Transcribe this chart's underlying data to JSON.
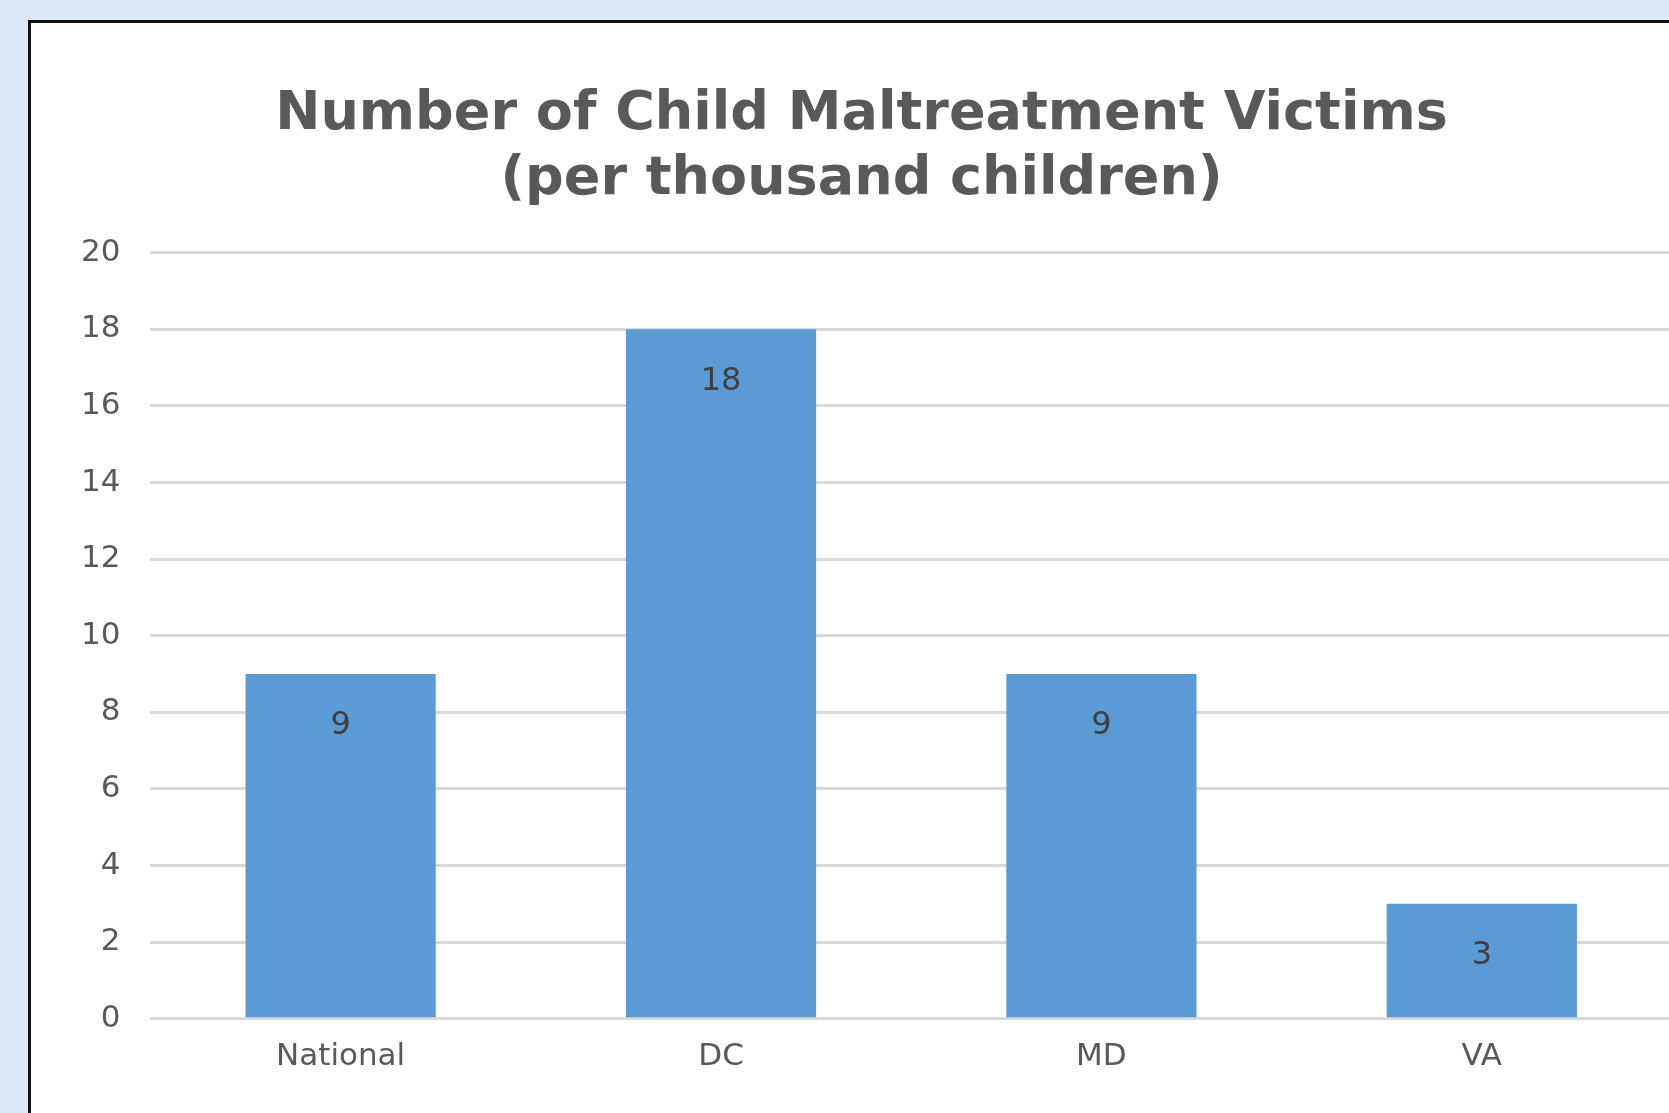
{
  "chart_data": {
    "type": "bar",
    "title": [
      "Number of Child Maltreatment Victims",
      "(per thousand children)"
    ],
    "categories": [
      "National",
      "DC",
      "MD",
      "VA"
    ],
    "values": [
      9,
      18,
      9,
      3
    ],
    "color": "#5b9bd5",
    "ylim": [
      0,
      20
    ],
    "yticks": [
      0,
      2,
      4,
      6,
      8,
      10,
      12,
      14,
      16,
      18,
      20
    ],
    "grid": "y",
    "legend": false,
    "data_labels": true
  }
}
